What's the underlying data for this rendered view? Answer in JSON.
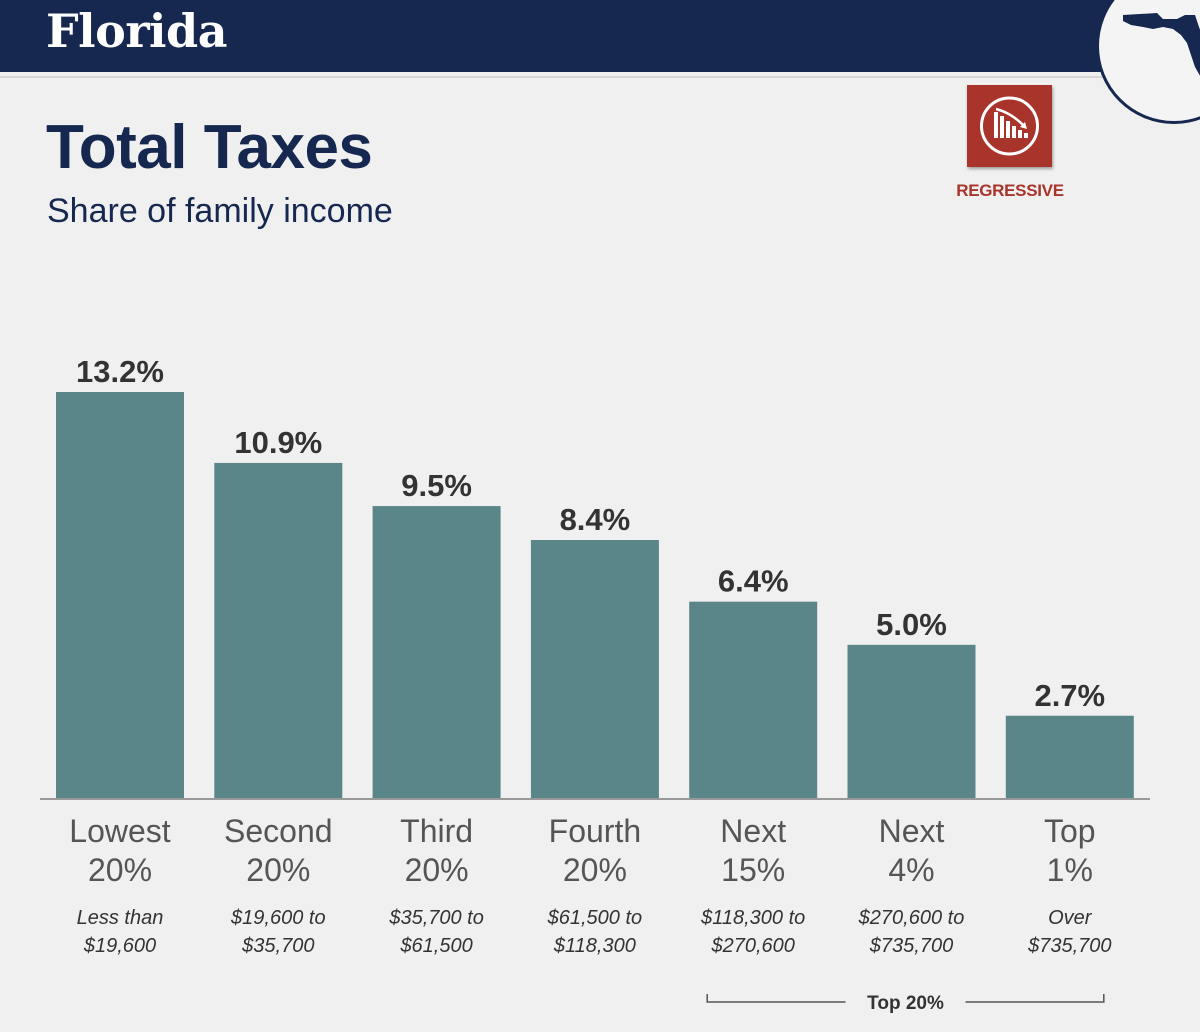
{
  "header": {
    "state": "Florida"
  },
  "chart_title": "Total Taxes",
  "chart_subtitle": "Share of family income",
  "badge": {
    "label": "REGRESSIVE",
    "icon": "regressive-chart-icon",
    "color": "#a8342b"
  },
  "colors": {
    "bar": "#5a8689",
    "header": "#16284f"
  },
  "chart_data": {
    "type": "bar",
    "title": "Total Taxes",
    "subtitle": "Share of family income",
    "xlabel": "",
    "ylabel": "",
    "ylim": [
      0,
      13.2
    ],
    "categories": [
      {
        "line1": "Lowest",
        "line2": "20%",
        "range1": "Less than",
        "range2": "$19,600"
      },
      {
        "line1": "Second",
        "line2": "20%",
        "range1": "$19,600 to",
        "range2": "$35,700"
      },
      {
        "line1": "Third",
        "line2": "20%",
        "range1": "$35,700 to",
        "range2": "$61,500"
      },
      {
        "line1": "Fourth",
        "line2": "20%",
        "range1": "$61,500 to",
        "range2": "$118,300"
      },
      {
        "line1": "Next",
        "line2": "15%",
        "range1": "$118,300 to",
        "range2": "$270,600"
      },
      {
        "line1": "Next",
        "line2": "4%",
        "range1": "$270,600 to",
        "range2": "$735,700"
      },
      {
        "line1": "Top",
        "line2": "1%",
        "range1": "Over",
        "range2": "$735,700"
      }
    ],
    "values": [
      13.2,
      10.9,
      9.5,
      8.4,
      6.4,
      5.0,
      2.7
    ],
    "value_labels": [
      "13.2%",
      "10.9%",
      "9.5%",
      "8.4%",
      "6.4%",
      "5.0%",
      "2.7%"
    ],
    "grid": false,
    "annotation": {
      "label": "Top 20%",
      "from_index": 4,
      "to_index": 6
    }
  }
}
